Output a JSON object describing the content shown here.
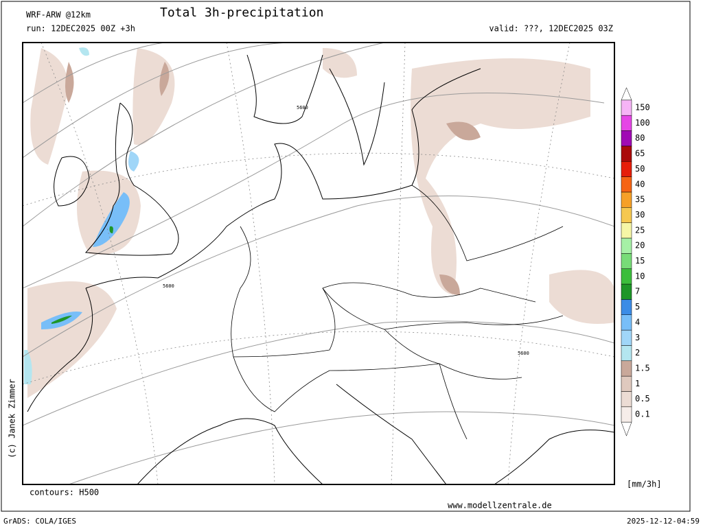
{
  "header": {
    "model": "WRF-ARW @12km",
    "title": "Total 3h-precipitation",
    "run": "run: 12DEC2025 00Z +3h",
    "valid": "valid: ???, 12DEC2025 03Z"
  },
  "map": {
    "contour_labels": [
      "5600",
      "5600",
      "5600"
    ]
  },
  "legend": {
    "unit": "[mm/3h]",
    "levels": [
      {
        "value": 0.1,
        "color": "#f6ede9"
      },
      {
        "value": 0.5,
        "color": "#ecdcd4"
      },
      {
        "value": 1,
        "color": "#dfc9be"
      },
      {
        "value": 1.5,
        "color": "#c9a89a"
      },
      {
        "value": 2,
        "color": "#b4e6f0"
      },
      {
        "value": 3,
        "color": "#a0d6f8"
      },
      {
        "value": 4,
        "color": "#78bef8"
      },
      {
        "value": 5,
        "color": "#3c8ce6"
      },
      {
        "value": 7,
        "color": "#1e9628"
      },
      {
        "value": 10,
        "color": "#3cbe3c"
      },
      {
        "value": 15,
        "color": "#78dc78"
      },
      {
        "value": 20,
        "color": "#a6f0a6"
      },
      {
        "value": 25,
        "color": "#f6f6a6"
      },
      {
        "value": 30,
        "color": "#f6c850"
      },
      {
        "value": 35,
        "color": "#f6a028"
      },
      {
        "value": 40,
        "color": "#f66414"
      },
      {
        "value": 50,
        "color": "#e61e0a"
      },
      {
        "value": 65,
        "color": "#aa0a0a"
      },
      {
        "value": 80,
        "color": "#a00ab4"
      },
      {
        "value": 100,
        "color": "#e646e6"
      },
      {
        "value": 150,
        "color": "#f6b4f6"
      }
    ]
  },
  "footer": {
    "contours": "contours: H500",
    "copyright": "(c) Janek Zimmer",
    "website": "www.modellzentrale.de",
    "software": "GrADS: COLA/IGES",
    "timestamp": "2025-12-12-04:59"
  }
}
